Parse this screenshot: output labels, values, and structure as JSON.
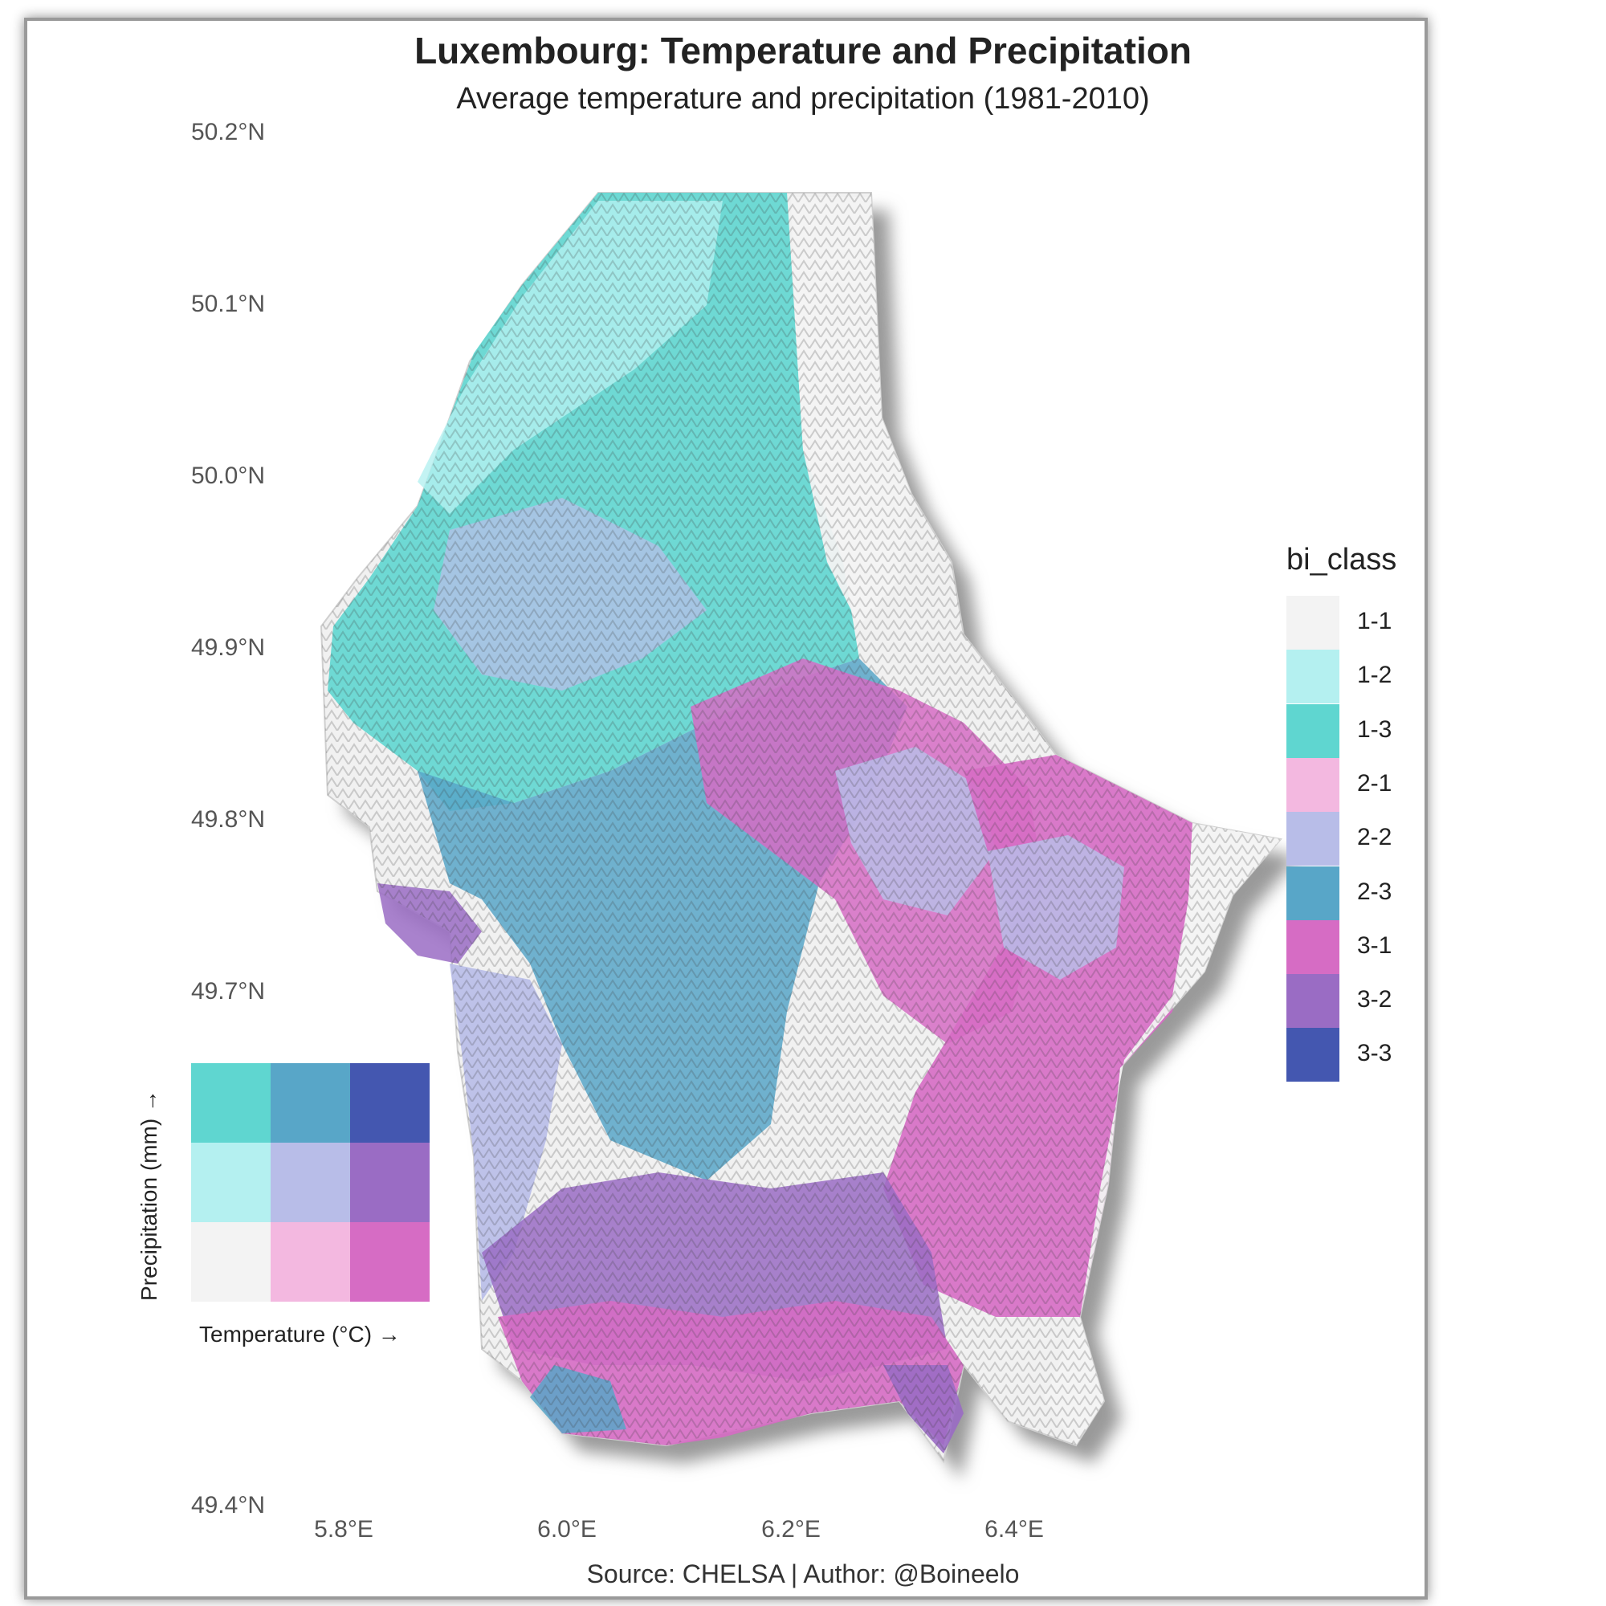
{
  "title": "Luxembourg: Temperature and Precipitation",
  "subtitle": "Average temperature and precipitation (1981-2010)",
  "caption": "Source: CHELSA | Author: @Boineelo",
  "lat_ticks": [
    "50.2°N",
    "50.1°N",
    "50.0°N",
    "49.9°N",
    "49.8°N",
    "49.7°N",
    "49.4°N"
  ],
  "lon_ticks": [
    "5.8°E",
    "6.0°E",
    "6.2°E",
    "6.4°E"
  ],
  "legend": {
    "title": "bi_class",
    "items": [
      {
        "label": "1-1",
        "color": "#f3f3f3"
      },
      {
        "label": "1-2",
        "color": "#b4f0f0"
      },
      {
        "label": "1-3",
        "color": "#5fd6d0"
      },
      {
        "label": "2-1",
        "color": "#f3b8e0"
      },
      {
        "label": "2-2",
        "color": "#b8bde8"
      },
      {
        "label": "2-3",
        "color": "#58a6c8"
      },
      {
        "label": "3-1",
        "color": "#d66cc4"
      },
      {
        "label": "3-2",
        "color": "#9a6cc4"
      },
      {
        "label": "3-3",
        "color": "#4457b0"
      }
    ]
  },
  "bivariate_key": {
    "x_label": "Temperature (°C) →",
    "y_label": "Precipitation (mm) →"
  }
}
